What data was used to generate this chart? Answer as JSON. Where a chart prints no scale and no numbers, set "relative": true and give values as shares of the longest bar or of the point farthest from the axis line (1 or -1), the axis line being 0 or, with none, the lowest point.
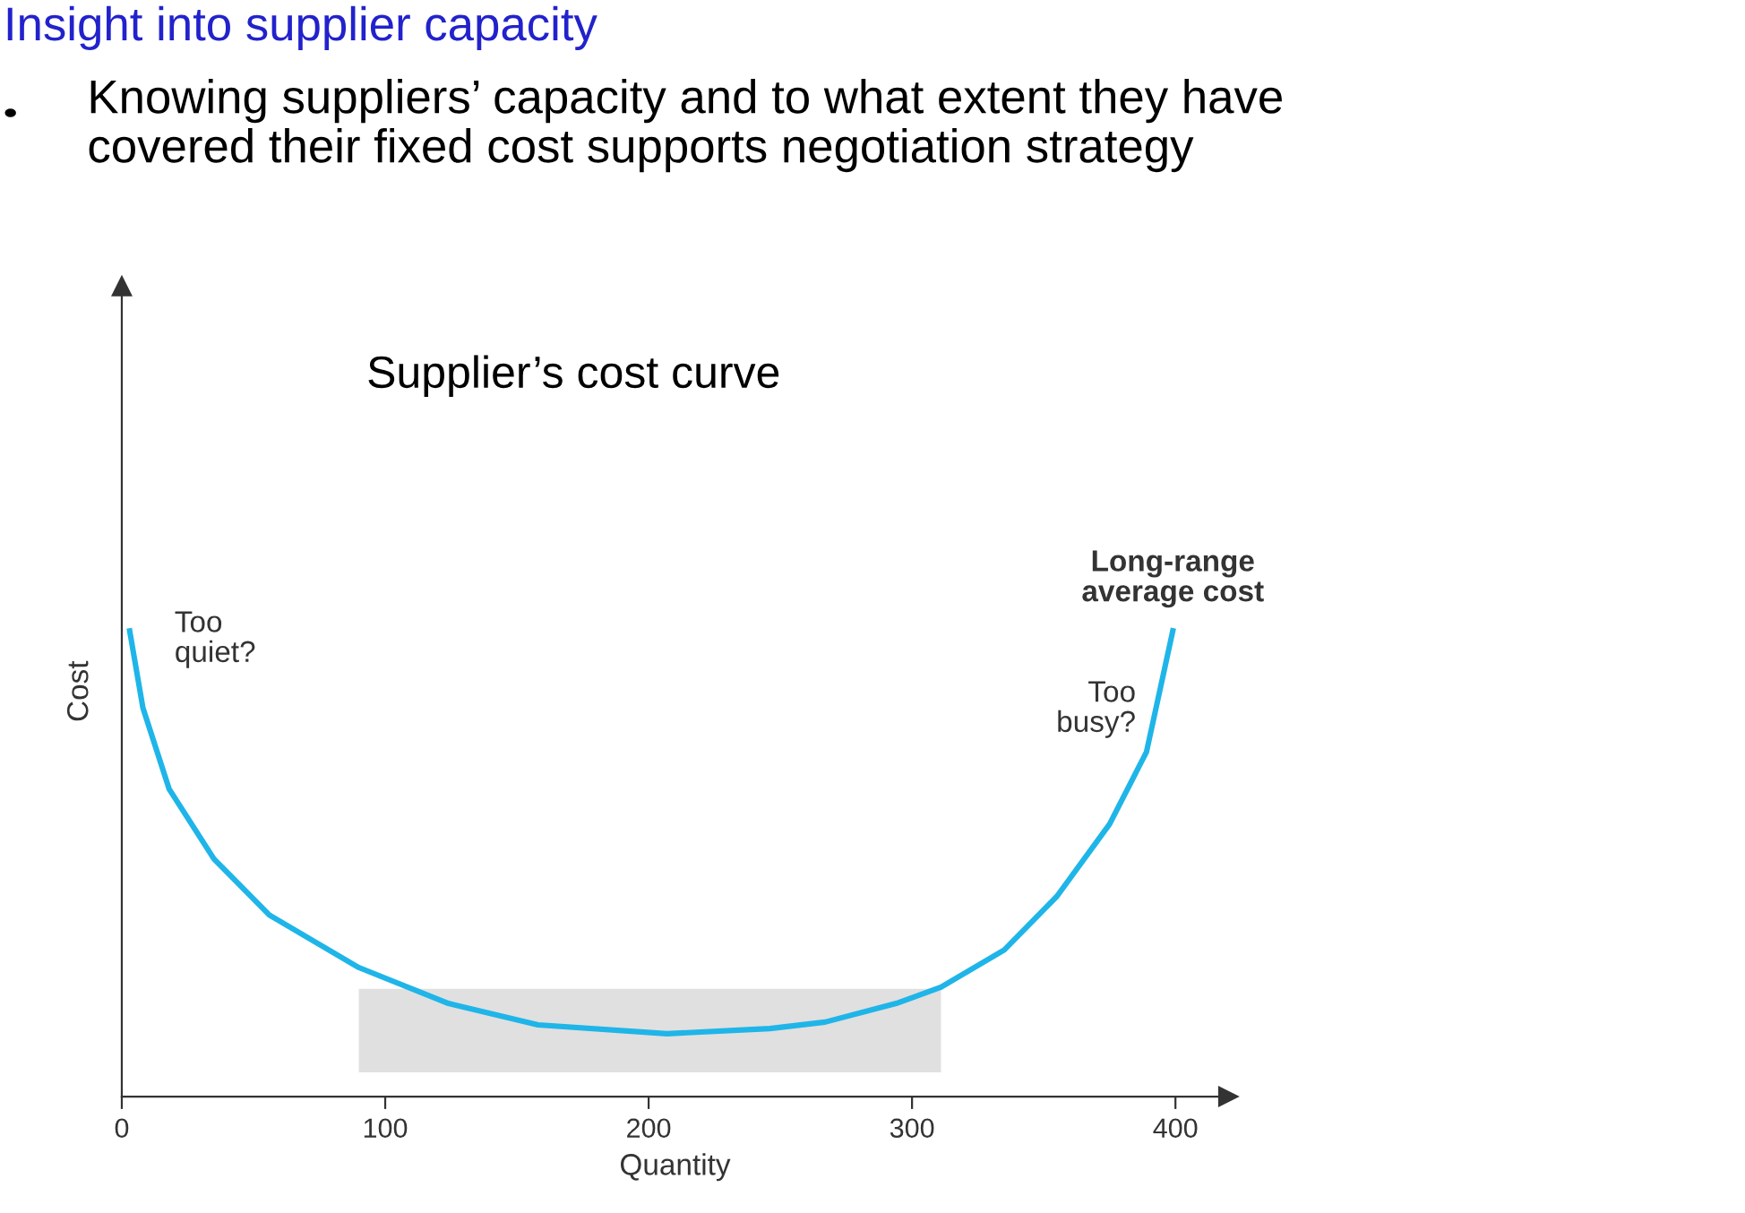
{
  "chart_data": {
    "type": "line",
    "title": "Insight into supplier capacity",
    "subtitle": "Knowing suppliers’ capacity and to what extent they have\ncovered their fixed cost supports negotiation strategy",
    "xlabel": "Quantity",
    "ylabel": "Cost",
    "relative": true,
    "xlim": [
      0,
      420
    ],
    "xticks": [
      0,
      100,
      200,
      300,
      400
    ],
    "grid": false,
    "series": [
      {
        "name": "Long-range\naverage cost",
        "color": "#1fb5e8",
        "x": [
          3,
          8,
          18,
          35,
          56,
          90,
          124,
          158,
          207,
          246,
          267,
          294,
          311,
          335,
          355,
          375,
          389,
          399
        ],
        "values": [
          1.0,
          0.835,
          0.66,
          0.51,
          0.39,
          0.277,
          0.2,
          0.154,
          0.135,
          0.146,
          0.16,
          0.2,
          0.235,
          0.315,
          0.43,
          0.585,
          0.74,
          1.0
        ]
      }
    ],
    "bands": [
      {
        "axis": "x",
        "from": 90,
        "to": 311,
        "color": "#e0e0e0"
      }
    ],
    "annotations": [
      "Supplier’s cost curve",
      {
        "text": "Too\nquiet?",
        "x": 8,
        "y": 0.9
      },
      {
        "text": "Too\nbusy?",
        "x": 389,
        "y": 0.74
      }
    ]
  }
}
